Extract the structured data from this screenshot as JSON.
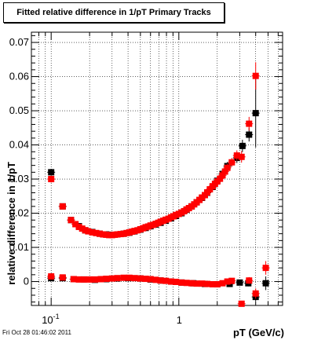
{
  "chart_data": {
    "type": "scatter",
    "title": "Fitted relative difference in 1/pT  Primary Tracks",
    "xlabel": "pT (GeV/c)",
    "ylabel": "relative difference in 1/pT",
    "x_scale": "log",
    "xlim": [
      0.07,
      6.5
    ],
    "ylim": [
      -0.007,
      0.073
    ],
    "grid": true,
    "x_tick_labels": [
      {
        "value": 0.1,
        "base": "10",
        "exp": "-1"
      },
      {
        "value": 1,
        "base": "1",
        "exp": ""
      }
    ],
    "y_ticks": [
      0,
      0.01,
      0.02,
      0.03,
      0.04,
      0.05,
      0.06,
      0.07
    ],
    "y_tick_labels": [
      "0",
      "0.01",
      "0.02",
      "0.03",
      "0.04",
      "0.05",
      "0.06",
      "0.07"
    ],
    "series": [
      {
        "color": "#000000",
        "marker": "square",
        "points": [
          [
            0.1,
            0.032,
            0.001
          ],
          [
            0.123,
            0.022,
            0.0005
          ],
          [
            0.143,
            0.018,
            0.0004
          ],
          [
            0.165,
            0.0162,
            0.0003
          ],
          [
            0.185,
            0.015,
            0.0003
          ],
          [
            0.21,
            0.0145,
            0.0003
          ],
          [
            0.24,
            0.014,
            0.0003
          ],
          [
            0.27,
            0.0138,
            0.0003
          ],
          [
            0.3,
            0.0137,
            0.0003
          ],
          [
            0.33,
            0.0138,
            0.0003
          ],
          [
            0.37,
            0.014,
            0.0003
          ],
          [
            0.41,
            0.0143,
            0.0003
          ],
          [
            0.45,
            0.0147,
            0.0003
          ],
          [
            0.5,
            0.0152,
            0.0003
          ],
          [
            0.55,
            0.0157,
            0.0003
          ],
          [
            0.6,
            0.0162,
            0.0003
          ],
          [
            0.66,
            0.0167,
            0.0003
          ],
          [
            0.72,
            0.0172,
            0.0003
          ],
          [
            0.79,
            0.0178,
            0.0003
          ],
          [
            0.87,
            0.0185,
            0.0003
          ],
          [
            0.95,
            0.0192,
            0.0003
          ],
          [
            1.05,
            0.02,
            0.0004
          ],
          [
            1.15,
            0.021,
            0.0004
          ],
          [
            1.26,
            0.022,
            0.0004
          ],
          [
            1.38,
            0.0232,
            0.0005
          ],
          [
            1.52,
            0.0245,
            0.0005
          ],
          [
            1.67,
            0.026,
            0.0006
          ],
          [
            1.84,
            0.0277,
            0.0007
          ],
          [
            2.0,
            0.0295,
            0.0008
          ],
          [
            2.2,
            0.0315,
            0.001
          ],
          [
            2.4,
            0.0338,
            0.0012
          ],
          [
            2.85,
            0.0362,
            0.0015
          ],
          [
            3.15,
            0.0397,
            0.0018
          ],
          [
            3.55,
            0.043,
            0.002
          ],
          [
            4.0,
            0.0493,
            0.01
          ],
          [
            0.1,
            0.001,
            0.0005
          ],
          [
            0.123,
            0.001,
            0.0004
          ],
          [
            0.15,
            0.0007,
            0.0003
          ],
          [
            0.18,
            0.0006,
            0.0003
          ],
          [
            0.22,
            0.0005,
            0.0002
          ],
          [
            0.27,
            0.0007,
            0.0002
          ],
          [
            0.33,
            0.0009,
            0.0002
          ],
          [
            0.4,
            0.001,
            0.0002
          ],
          [
            0.5,
            0.0009,
            0.0002
          ],
          [
            0.6,
            0.0006,
            0.0002
          ],
          [
            0.72,
            0.0003,
            0.0002
          ],
          [
            0.87,
            0.0,
            0.0002
          ],
          [
            1.05,
            -0.0003,
            0.0002
          ],
          [
            1.3,
            -0.0005,
            0.0003
          ],
          [
            1.6,
            -0.0007,
            0.0003
          ],
          [
            2.0,
            -0.0008,
            0.0004
          ],
          [
            2.5,
            -0.0007,
            0.0005
          ],
          [
            3.0,
            -0.0003,
            0.0007
          ],
          [
            3.5,
            -0.0005,
            0.0009
          ],
          [
            4.0,
            -0.0045,
            0.0012
          ],
          [
            4.8,
            -0.0005,
            0.002
          ]
        ]
      },
      {
        "color": "#ff0000",
        "marker": "square",
        "points": [
          [
            0.1,
            0.03,
            0.001
          ],
          [
            0.123,
            0.022,
            0.0005
          ],
          [
            0.143,
            0.018,
            0.0004
          ],
          [
            0.155,
            0.0168,
            0.0003
          ],
          [
            0.165,
            0.016,
            0.0003
          ],
          [
            0.175,
            0.0155,
            0.0003
          ],
          [
            0.185,
            0.015,
            0.0003
          ],
          [
            0.195,
            0.0147,
            0.0003
          ],
          [
            0.21,
            0.0144,
            0.0003
          ],
          [
            0.225,
            0.0142,
            0.0003
          ],
          [
            0.24,
            0.014,
            0.0003
          ],
          [
            0.255,
            0.0138,
            0.0003
          ],
          [
            0.27,
            0.0137,
            0.0003
          ],
          [
            0.285,
            0.0136,
            0.0003
          ],
          [
            0.3,
            0.0136,
            0.0003
          ],
          [
            0.315,
            0.0137,
            0.0003
          ],
          [
            0.33,
            0.0138,
            0.0003
          ],
          [
            0.35,
            0.0139,
            0.0003
          ],
          [
            0.37,
            0.014,
            0.0003
          ],
          [
            0.39,
            0.0142,
            0.0003
          ],
          [
            0.41,
            0.0144,
            0.0003
          ],
          [
            0.43,
            0.0146,
            0.0003
          ],
          [
            0.45,
            0.0148,
            0.0003
          ],
          [
            0.475,
            0.015,
            0.0003
          ],
          [
            0.5,
            0.0153,
            0.0003
          ],
          [
            0.525,
            0.0156,
            0.0003
          ],
          [
            0.55,
            0.0159,
            0.0003
          ],
          [
            0.575,
            0.0161,
            0.0003
          ],
          [
            0.6,
            0.0164,
            0.0003
          ],
          [
            0.63,
            0.0166,
            0.0003
          ],
          [
            0.66,
            0.0169,
            0.0003
          ],
          [
            0.69,
            0.0172,
            0.0003
          ],
          [
            0.72,
            0.0175,
            0.0003
          ],
          [
            0.755,
            0.0178,
            0.0003
          ],
          [
            0.79,
            0.0181,
            0.0003
          ],
          [
            0.83,
            0.0184,
            0.0003
          ],
          [
            0.87,
            0.0188,
            0.0003
          ],
          [
            0.91,
            0.0191,
            0.0003
          ],
          [
            0.95,
            0.0195,
            0.0003
          ],
          [
            1.0,
            0.0198,
            0.0004
          ],
          [
            1.05,
            0.0202,
            0.0004
          ],
          [
            1.1,
            0.0206,
            0.0004
          ],
          [
            1.15,
            0.0211,
            0.0004
          ],
          [
            1.2,
            0.0215,
            0.0004
          ],
          [
            1.26,
            0.022,
            0.0004
          ],
          [
            1.32,
            0.0226,
            0.0005
          ],
          [
            1.38,
            0.0232,
            0.0005
          ],
          [
            1.45,
            0.0239,
            0.0005
          ],
          [
            1.52,
            0.0246,
            0.0005
          ],
          [
            1.6,
            0.0253,
            0.0006
          ],
          [
            1.67,
            0.0261,
            0.0006
          ],
          [
            1.75,
            0.027,
            0.0006
          ],
          [
            1.84,
            0.0279,
            0.0007
          ],
          [
            1.92,
            0.0286,
            0.0007
          ],
          [
            2.0,
            0.0293,
            0.0008
          ],
          [
            2.1,
            0.0301,
            0.0009
          ],
          [
            2.2,
            0.0311,
            0.001
          ],
          [
            2.3,
            0.0322,
            0.0011
          ],
          [
            2.4,
            0.0333,
            0.0012
          ],
          [
            2.6,
            0.0349,
            0.0013
          ],
          [
            2.85,
            0.0369,
            0.0015
          ],
          [
            3.1,
            0.0365,
            0.0017
          ],
          [
            3.55,
            0.0462,
            0.002
          ],
          [
            4.0,
            0.0602,
            0.004
          ],
          [
            0.1,
            0.0015,
            0.0005
          ],
          [
            0.123,
            0.0012,
            0.0004
          ],
          [
            0.15,
            0.0007,
            0.0003
          ],
          [
            0.165,
            0.0006,
            0.0003
          ],
          [
            0.18,
            0.0006,
            0.0003
          ],
          [
            0.2,
            0.0006,
            0.0002
          ],
          [
            0.22,
            0.0006,
            0.0002
          ],
          [
            0.245,
            0.0007,
            0.0002
          ],
          [
            0.27,
            0.0008,
            0.0002
          ],
          [
            0.3,
            0.0009,
            0.0002
          ],
          [
            0.33,
            0.001,
            0.0002
          ],
          [
            0.37,
            0.0011,
            0.0002
          ],
          [
            0.41,
            0.0011,
            0.0002
          ],
          [
            0.45,
            0.001,
            0.0002
          ],
          [
            0.5,
            0.0009,
            0.0002
          ],
          [
            0.55,
            0.0008,
            0.0002
          ],
          [
            0.6,
            0.0007,
            0.0002
          ],
          [
            0.66,
            0.0005,
            0.0002
          ],
          [
            0.72,
            0.0003,
            0.0002
          ],
          [
            0.79,
            0.0002,
            0.0002
          ],
          [
            0.87,
            0.0,
            0.0002
          ],
          [
            0.95,
            -0.0001,
            0.0002
          ],
          [
            1.05,
            -0.0003,
            0.0002
          ],
          [
            1.15,
            -0.0004,
            0.0003
          ],
          [
            1.26,
            -0.0005,
            0.0003
          ],
          [
            1.38,
            -0.0006,
            0.0003
          ],
          [
            1.52,
            -0.0006,
            0.0003
          ],
          [
            1.67,
            -0.0007,
            0.0003
          ],
          [
            1.84,
            -0.0008,
            0.0004
          ],
          [
            2.0,
            -0.0008,
            0.0004
          ],
          [
            2.2,
            -0.0005,
            0.0005
          ],
          [
            2.4,
            0.0,
            0.0005
          ],
          [
            2.6,
            0.0002,
            0.0006
          ],
          [
            3.1,
            -0.0065,
            0.0008
          ],
          [
            3.55,
            0.0003,
            0.001
          ],
          [
            4.0,
            -0.0035,
            0.0015
          ],
          [
            4.8,
            0.004,
            0.002
          ]
        ]
      }
    ]
  },
  "footer": {
    "timestamp": "Fri Oct 28 01:46:02 2011"
  }
}
